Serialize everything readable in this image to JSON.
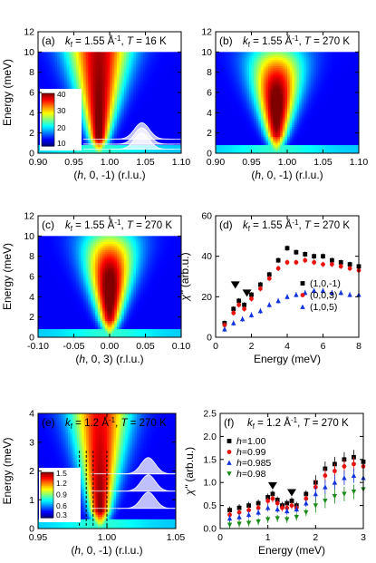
{
  "chart_data": [
    {
      "id": "a",
      "type": "heatmap",
      "panel_label": "(a)",
      "condition": {
        "k": "k",
        "sub": "f",
        "value": " = 1.55 Å",
        "sup": "-1",
        "rest": ", ",
        "T": "T",
        "tval": " = 16 K"
      },
      "xlabel": {
        "pre": "(",
        "var": "h",
        "post": ", 0, -1) (r.l.u.)"
      },
      "ylabel": "Energy (meV)",
      "xlim": [
        0.9,
        1.1
      ],
      "ylim": [
        0,
        12
      ],
      "xticks": [
        "0.90",
        "0.95",
        "1.00",
        "1.05",
        "1.10"
      ],
      "yticks": [
        "0",
        "2",
        "4",
        "6",
        "8",
        "10",
        "12"
      ],
      "data_top": 10,
      "center": 0.985,
      "colorbar": {
        "ticks": [
          "40",
          "30",
          "20",
          "10"
        ],
        "min": 10,
        "max": 40
      },
      "cuts": [
        {
          "energy": 1.4,
          "center": 1.045
        },
        {
          "energy": 0.9,
          "center": 1.045
        },
        {
          "energy": 0.4,
          "center": 1.045
        }
      ]
    },
    {
      "id": "b",
      "type": "heatmap",
      "panel_label": "(b)",
      "condition": {
        "k": "k",
        "sub": "f",
        "value": " = 1.55 Å",
        "sup": "-1",
        "rest": ", ",
        "T": "T",
        "tval": " = 270 K"
      },
      "xlabel": {
        "pre": "(",
        "var": "h",
        "post": ", 0, -1) (r.l.u.)"
      },
      "ylabel": "",
      "xlim": [
        0.9,
        1.1
      ],
      "ylim": [
        0,
        12
      ],
      "xticks": [
        "0.90",
        "0.95",
        "1.00",
        "1.05",
        "1.10"
      ],
      "yticks": [
        "0",
        "2",
        "4",
        "6",
        "8",
        "10",
        "12"
      ],
      "data_top": 10,
      "center": 0.985
    },
    {
      "id": "c",
      "type": "heatmap",
      "panel_label": "(c)",
      "condition": {
        "k": "k",
        "sub": "f",
        "value": " = 1.55 Å",
        "sup": "-1",
        "rest": ", ",
        "T": "T",
        "tval": " = 270 K"
      },
      "xlabel": {
        "pre": "(",
        "var": "h",
        "post": ", 0, 3) (r.l.u.)"
      },
      "ylabel": "Energy (meV)",
      "xlim": [
        -0.1,
        0.1
      ],
      "ylim": [
        0,
        12
      ],
      "xticks": [
        "-0.10",
        "-0.05",
        "0.00",
        "0.05",
        "0.10"
      ],
      "yticks": [
        "0",
        "2",
        "4",
        "6",
        "8",
        "10",
        "12"
      ],
      "data_top": 10,
      "center": 0.0
    },
    {
      "id": "d",
      "type": "scatter",
      "panel_label": "(d)",
      "condition": {
        "k": "k",
        "sub": "f",
        "value": " = 1.55 Å",
        "sup": "-1",
        "rest": ", ",
        "T": "T",
        "tval": " = 270 K"
      },
      "xlabel": "Energy (meV)",
      "ylabel": "χ'' (arb.u.)",
      "xlim": [
        0,
        8
      ],
      "ylim": [
        0,
        60
      ],
      "xticks": [
        "0",
        "2",
        "4",
        "6",
        "8"
      ],
      "yticks": [
        "0",
        "20",
        "40",
        "60"
      ],
      "arrows": [
        {
          "x": 1.1,
          "y": 24
        },
        {
          "x": 1.75,
          "y": 20
        }
      ],
      "series": [
        {
          "name": "(1,0,-1)",
          "color": "#000000",
          "marker": "square",
          "x": [
            0.5,
            1.0,
            1.3,
            1.6,
            2.0,
            2.5,
            3.0,
            3.5,
            4.0,
            4.5,
            5.0,
            5.5,
            6.0,
            6.5,
            7.0,
            7.5,
            8.0
          ],
          "y": [
            7,
            14,
            18,
            16,
            21,
            26,
            31,
            38,
            44,
            42,
            41,
            40,
            40,
            38,
            37,
            36,
            35
          ]
        },
        {
          "name": "(0,0,3)",
          "color": "#e8120c",
          "marker": "circle",
          "x": [
            0.5,
            1.0,
            1.3,
            1.6,
            2.0,
            2.5,
            3.0,
            3.5,
            4.0,
            4.5,
            5.0,
            5.5,
            6.0,
            6.5,
            7.0,
            7.5,
            8.0
          ],
          "y": [
            6,
            12,
            16,
            14,
            19,
            24,
            29,
            34,
            37,
            37,
            38,
            37,
            36,
            36,
            35,
            34,
            33
          ]
        },
        {
          "name": "(1,0,5)",
          "color": "#1133dd",
          "marker": "triangle",
          "x": [
            0.5,
            1.0,
            1.5,
            2.0,
            2.5,
            3.0,
            3.5,
            4.0,
            4.5,
            5.0,
            5.5,
            6.0,
            6.5,
            7.0,
            7.5,
            8.0
          ],
          "y": [
            4,
            7,
            9,
            11,
            13,
            16,
            18,
            20,
            21,
            22,
            23,
            23,
            22,
            22,
            21,
            21
          ]
        }
      ]
    },
    {
      "id": "e",
      "type": "heatmap",
      "panel_label": "(e)",
      "condition": {
        "k": "k",
        "sub": "f",
        "value": " = 1.2 Å",
        "sup": "-1",
        "rest": ", ",
        "T": "T",
        "tval": " = 270 K"
      },
      "xlabel": {
        "pre": "(",
        "var": "h",
        "post": ", 0, -1) (r.l.u.)"
      },
      "ylabel": "Energy (meV)",
      "xlim": [
        0.95,
        1.05
      ],
      "ylim": [
        0,
        4
      ],
      "xticks": [
        "0.95",
        "1.00",
        "1.05"
      ],
      "yticks": [
        "0",
        "1",
        "2",
        "3",
        "4"
      ],
      "data_top": 4,
      "center": 0.995,
      "colorbar": {
        "ticks": [
          "1.5",
          "1.2",
          "0.9",
          "0.6",
          "0.3"
        ],
        "min": 0.3,
        "max": 1.5
      },
      "dashed_h": [
        0.98,
        0.985,
        0.99,
        1.0
      ],
      "cuts": [
        {
          "energy": 1.9,
          "center": 1.03
        },
        {
          "energy": 1.3,
          "center": 1.03
        },
        {
          "energy": 0.7,
          "center": 1.03
        }
      ]
    },
    {
      "id": "f",
      "type": "scatter",
      "panel_label": "(f)",
      "condition": {
        "k": "k",
        "sub": "f",
        "value": " = 1.2 Å",
        "sup": "-1",
        "rest": ", ",
        "T": "T",
        "tval": " = 270 K"
      },
      "xlabel": "Energy (meV)",
      "ylabel": "χ'' (arb.u.)",
      "xlim": [
        0,
        3
      ],
      "ylim": [
        0,
        2.5
      ],
      "xticks": [
        "0",
        "1",
        "2",
        "3"
      ],
      "yticks": [
        "0.0",
        "0.5",
        "1.0",
        "1.5",
        "2.0",
        "2.5"
      ],
      "arrows": [
        {
          "x": 1.1,
          "y": 0.85
        },
        {
          "x": 1.5,
          "y": 0.7
        }
      ],
      "series": [
        {
          "name": "h=1.00",
          "color": "#000000",
          "marker": "square",
          "x": [
            0.2,
            0.4,
            0.6,
            0.8,
            1.0,
            1.1,
            1.2,
            1.3,
            1.4,
            1.5,
            1.6,
            1.8,
            2.0,
            2.2,
            2.4,
            2.6,
            2.8,
            3.0
          ],
          "y": [
            0.4,
            0.45,
            0.5,
            0.55,
            0.68,
            0.75,
            0.62,
            0.5,
            0.55,
            0.6,
            0.5,
            0.75,
            1.0,
            1.3,
            1.4,
            1.5,
            1.55,
            1.45
          ]
        },
        {
          "name": "h=0.99",
          "color": "#e8120c",
          "marker": "circle",
          "x": [
            0.2,
            0.4,
            0.6,
            0.8,
            1.0,
            1.1,
            1.2,
            1.3,
            1.4,
            1.5,
            1.6,
            1.8,
            2.0,
            2.2,
            2.4,
            2.6,
            2.8,
            3.0
          ],
          "y": [
            0.3,
            0.35,
            0.4,
            0.45,
            0.6,
            0.65,
            0.55,
            0.45,
            0.45,
            0.5,
            0.45,
            0.65,
            0.9,
            1.15,
            1.25,
            1.35,
            1.4,
            1.35
          ]
        },
        {
          "name": "h=0.985",
          "color": "#1133dd",
          "marker": "triangle",
          "x": [
            0.2,
            0.4,
            0.6,
            0.8,
            1.0,
            1.2,
            1.4,
            1.6,
            1.8,
            2.0,
            2.2,
            2.4,
            2.6,
            2.8,
            3.0
          ],
          "y": [
            0.22,
            0.25,
            0.3,
            0.35,
            0.45,
            0.42,
            0.38,
            0.42,
            0.55,
            0.75,
            0.9,
            1.0,
            1.1,
            1.15,
            1.1
          ]
        },
        {
          "name": "h=0.98",
          "color": "#1a8c1a",
          "marker": "triangle-down",
          "x": [
            0.2,
            0.4,
            0.6,
            0.8,
            1.0,
            1.2,
            1.4,
            1.6,
            1.8,
            2.0,
            2.2,
            2.4,
            2.6,
            2.8,
            3.0
          ],
          "y": [
            0.08,
            0.1,
            0.12,
            0.15,
            0.2,
            0.22,
            0.2,
            0.25,
            0.35,
            0.5,
            0.6,
            0.7,
            0.75,
            0.8,
            0.85
          ]
        }
      ]
    }
  ]
}
